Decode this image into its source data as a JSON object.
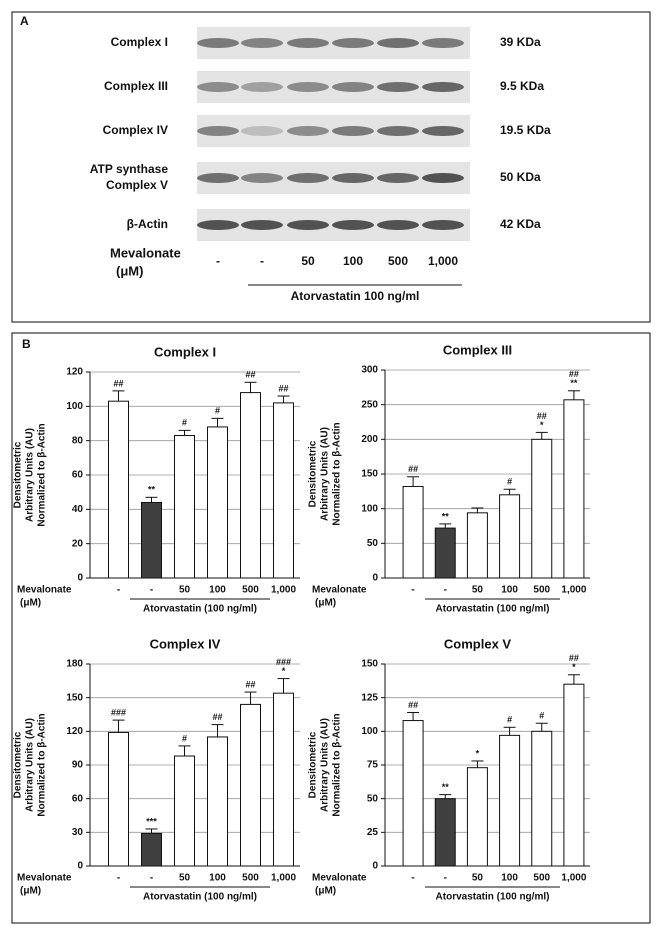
{
  "panel_a": {
    "label": "A",
    "rows": [
      {
        "label": [
          "Complex I"
        ],
        "size": "39 KDa"
      },
      {
        "label": [
          "Complex III"
        ],
        "size": "9.5 KDa"
      },
      {
        "label": [
          "Complex IV"
        ],
        "size": "19.5 KDa"
      },
      {
        "label": [
          "ATP synthase",
          "Complex V"
        ],
        "size": "50 KDa"
      },
      {
        "label": [
          "β-Actin"
        ],
        "size": "42 KDa"
      }
    ],
    "lane_title": [
      "Mevalonate",
      "(μM)"
    ],
    "lanes": [
      "-",
      "-",
      "50",
      "100",
      "500",
      "1,000"
    ],
    "group_label": "Atorvastatin 100 ng/ml"
  },
  "panel_b": {
    "label": "B"
  },
  "chart_data": [
    {
      "type": "bar",
      "title": "Complex I",
      "y_label": [
        "Densitometric",
        "Arbitrary Units (AU)",
        "Normalized to β-Actin"
      ],
      "row_label": [
        "Mevalonate",
        "(μM)"
      ],
      "group_label": "Atorvastatin (100 ng/ml)",
      "categories": [
        "-",
        "-",
        "50",
        "100",
        "500",
        "1,000"
      ],
      "values": [
        103,
        44,
        83,
        88,
        108,
        102
      ],
      "errors": [
        6,
        3,
        3,
        5,
        6,
        4
      ],
      "colors": [
        "#ffffff",
        "#404040",
        "#ffffff",
        "#ffffff",
        "#ffffff",
        "#ffffff"
      ],
      "annotations": [
        [
          "##"
        ],
        [
          "**"
        ],
        [
          "#"
        ],
        [
          "#"
        ],
        [
          "##"
        ],
        [
          "##"
        ]
      ],
      "ylim": [
        0,
        120
      ],
      "yticks": [
        0,
        20,
        40,
        60,
        80,
        100,
        120
      ],
      "grid": true
    },
    {
      "type": "bar",
      "title": "Complex III",
      "y_label": [
        "Densitometric",
        "Arbitrary Units (AU)",
        "Normalized to β-Actin"
      ],
      "row_label": [
        "Mevalonate",
        "(μM)"
      ],
      "group_label": "Atorvastatin (100 ng/ml)",
      "categories": [
        "-",
        "-",
        "50",
        "100",
        "500",
        "1,000"
      ],
      "values": [
        132,
        72,
        94,
        120,
        200,
        257
      ],
      "errors": [
        14,
        6,
        7,
        8,
        10,
        13
      ],
      "colors": [
        "#ffffff",
        "#404040",
        "#ffffff",
        "#ffffff",
        "#ffffff",
        "#ffffff"
      ],
      "annotations": [
        [
          "##"
        ],
        [
          "**"
        ],
        null,
        [
          "#"
        ],
        [
          "##",
          "*"
        ],
        [
          "##",
          "**"
        ]
      ],
      "ylim": [
        0,
        300
      ],
      "yticks": [
        0,
        50,
        100,
        150,
        200,
        250,
        300
      ],
      "grid": true
    },
    {
      "type": "bar",
      "title": "Complex IV",
      "y_label": [
        "Densitometric",
        "Arbitrary Units (AU)",
        "Normalized to β-Actin"
      ],
      "row_label": [
        "Mevalonate",
        "(μM)"
      ],
      "group_label": "Atorvastatin (100 ng/ml)",
      "categories": [
        "-",
        "-",
        "50",
        "100",
        "500",
        "1,000"
      ],
      "values": [
        119,
        29,
        98,
        115,
        144,
        154
      ],
      "errors": [
        11,
        4,
        9,
        11,
        11,
        13
      ],
      "colors": [
        "#ffffff",
        "#404040",
        "#ffffff",
        "#ffffff",
        "#ffffff",
        "#ffffff"
      ],
      "annotations": [
        [
          "###"
        ],
        [
          "***"
        ],
        [
          "#"
        ],
        [
          "##"
        ],
        [
          "##"
        ],
        [
          "###",
          "*"
        ]
      ],
      "ylim": [
        0,
        180
      ],
      "yticks": [
        0,
        30,
        60,
        90,
        120,
        150,
        180
      ],
      "grid": true
    },
    {
      "type": "bar",
      "title": "Complex V",
      "y_label": [
        "Densitometric",
        "Arbitrary Units (AU)",
        "Normalized to β-Actin"
      ],
      "row_label": [
        "Mevalonate",
        "(μM)"
      ],
      "group_label": "Atorvastatin (100 ng/ml)",
      "categories": [
        "-",
        "-",
        "50",
        "100",
        "500",
        "1,000"
      ],
      "values": [
        108,
        50,
        73,
        97,
        100,
        135
      ],
      "errors": [
        6,
        3,
        5,
        6,
        6,
        7
      ],
      "colors": [
        "#ffffff",
        "#404040",
        "#ffffff",
        "#ffffff",
        "#ffffff",
        "#ffffff"
      ],
      "annotations": [
        [
          "##"
        ],
        [
          "**"
        ],
        [
          "*"
        ],
        [
          "#"
        ],
        [
          "#"
        ],
        [
          "##",
          "*"
        ]
      ],
      "ylim": [
        0,
        150
      ],
      "yticks": [
        0,
        25,
        50,
        75,
        100,
        125,
        150
      ],
      "grid": true
    }
  ]
}
